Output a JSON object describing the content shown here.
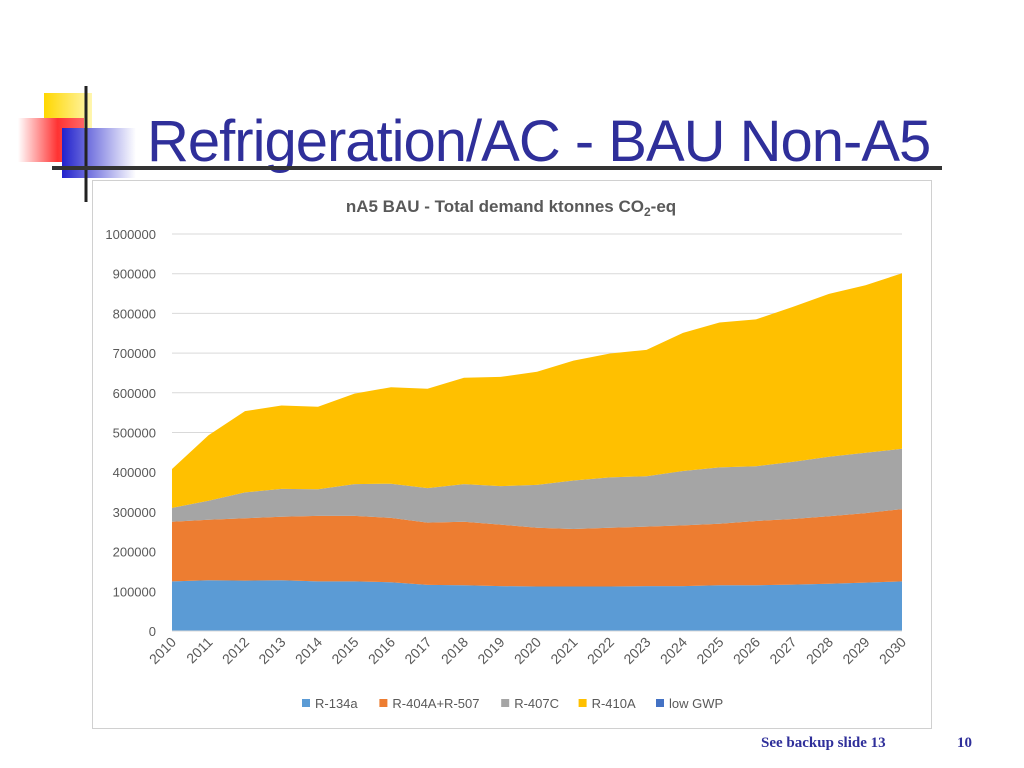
{
  "slide": {
    "title": "Refrigeration/AC - BAU  Non-A5",
    "footer_link": "See backup slide 13",
    "page_number": "10"
  },
  "colors": {
    "title": "#2f2f9a",
    "R-134a": "#5b9bd5",
    "R-404A+R-507": "#ed7d31",
    "R-407C": "#a5a5a5",
    "R-410A": "#ffc000",
    "low GWP": "#4472c4"
  },
  "chart_data": {
    "type": "area",
    "stacked": true,
    "title": "nA5 BAU - Total demand ktonnes CO",
    "title_sub": "2",
    "title_suffix": "-eq",
    "xlabel": "",
    "ylabel": "",
    "ylim": [
      0,
      1000000
    ],
    "yticks": [
      "0",
      "100000",
      "200000",
      "300000",
      "400000",
      "500000",
      "600000",
      "700000",
      "800000",
      "900000",
      "1000000"
    ],
    "grid": true,
    "legend": "bottom",
    "categories": [
      "2010",
      "2011",
      "2012",
      "2013",
      "2014",
      "2015",
      "2016",
      "2017",
      "2018",
      "2019",
      "2020",
      "2021",
      "2022",
      "2023",
      "2024",
      "2025",
      "2026",
      "2027",
      "2028",
      "2029",
      "2030"
    ],
    "series": [
      {
        "name": "R-134a",
        "values": [
          125000,
          128000,
          127000,
          128000,
          125000,
          125000,
          123000,
          116000,
          115000,
          113000,
          112000,
          112000,
          112000,
          113000,
          113000,
          115000,
          115000,
          117000,
          119000,
          122000,
          125000
        ]
      },
      {
        "name": "R-404A+R-507",
        "values": [
          150000,
          152000,
          157000,
          160000,
          165000,
          165000,
          162000,
          157000,
          160000,
          155000,
          148000,
          145000,
          148000,
          150000,
          153000,
          155000,
          162000,
          165000,
          170000,
          175000,
          182000
        ]
      },
      {
        "name": "R-407C",
        "values": [
          35000,
          48000,
          65000,
          70000,
          67000,
          80000,
          86000,
          87000,
          95000,
          97000,
          108000,
          122000,
          127000,
          127000,
          137000,
          142000,
          138000,
          144000,
          150000,
          152000,
          152000
        ]
      },
      {
        "name": "R-410A",
        "values": [
          98000,
          165000,
          205000,
          210000,
          208000,
          228000,
          243000,
          250000,
          268000,
          275000,
          285000,
          302000,
          312000,
          318000,
          348000,
          365000,
          370000,
          390000,
          410000,
          422000,
          442000
        ]
      },
      {
        "name": "low GWP",
        "values": [
          0,
          0,
          0,
          0,
          0,
          0,
          0,
          0,
          0,
          0,
          0,
          0,
          0,
          0,
          0,
          0,
          0,
          0,
          0,
          0,
          0
        ]
      }
    ]
  }
}
